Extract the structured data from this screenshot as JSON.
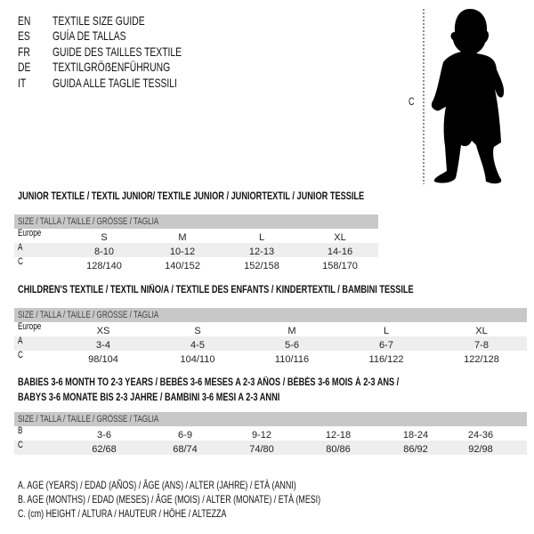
{
  "languages": [
    {
      "code": "EN",
      "title": "TEXTILE SIZE GUIDE"
    },
    {
      "code": "ES",
      "title": "GUÍA DE TALLAS"
    },
    {
      "code": "FR",
      "title": "GUIDE DES TAILLES TEXTILE"
    },
    {
      "code": "DE",
      "title": "TEXTILGRÖẞENFÜHRUNG"
    },
    {
      "code": "IT",
      "title": "GUIDA ALLE TAGLIE TESSILI"
    }
  ],
  "figure": {
    "label": "C"
  },
  "junior": {
    "title": "JUNIOR TEXTILE / TEXTIL JUNIOR/ TEXTILE JUNIOR / JUNIORTEXTIL / JUNIOR TESSILE",
    "header": "SIZE / TALLA / TAILLE / GRÖSSE / TAGLIA",
    "rows": [
      {
        "label": "Europe",
        "values": [
          "S",
          "M",
          "L",
          "XL"
        ]
      },
      {
        "label": "A",
        "values": [
          "8-10",
          "10-12",
          "12-13",
          "14-16"
        ]
      },
      {
        "label": "C",
        "values": [
          "128/140",
          "140/152",
          "152/158",
          "158/170"
        ]
      }
    ]
  },
  "children": {
    "title": "CHILDREN'S TEXTILE / TEXTIL NIÑO/A / TEXTILE DES ENFANTS / KINDERTEXTIL / BAMBINI TESSILE",
    "header": "SIZE / TALLA / TAILLE / GRÖSSE / TAGLIA",
    "rows": [
      {
        "label": "Europe",
        "values": [
          "XS",
          "S",
          "M",
          "L",
          "XL"
        ]
      },
      {
        "label": "A",
        "values": [
          "3-4",
          "4-5",
          "5-6",
          "6-7",
          "7-8"
        ]
      },
      {
        "label": "C",
        "values": [
          "98/104",
          "104/110",
          "110/116",
          "116/122",
          "122/128"
        ]
      }
    ]
  },
  "babies": {
    "title_line1": "BABIES 3-6 MONTH TO 2-3 YEARS / BEBÉS 3-6 MESES A 2-3 AÑOS / BÉBÉS 3-6 MOIS À 2-3 ANS /",
    "title_line2": "BABYS 3-6 MONATE BIS 2-3 JAHRE / BAMBINI 3-6 MESI A 2-3 ANNI",
    "header": "SIZE / TALLA / TAILLE / GRÖSSE / TAGLIA",
    "rows": [
      {
        "label": "B",
        "values": [
          "3-6",
          "6-9",
          "9-12",
          "12-18",
          "18-24",
          "24-36"
        ]
      },
      {
        "label": "C",
        "values": [
          "62/68",
          "68/74",
          "74/80",
          "80/86",
          "86/92",
          "92/98"
        ]
      }
    ]
  },
  "legend": [
    "A. AGE (YEARS) / EDAD (AÑOS) / ÂGE (ANS) / ALTER (JAHRE) / ETÀ (ANNI)",
    "B. AGE (MONTHS) / EDAD (MESES) / ÂGE (MOIS) / ALTER (MONATE) / ETÀ (MESI)",
    "C. (cm) HEIGHT / ALTURA / HAUTEUR / HÖHE / ALTEZZA"
  ]
}
